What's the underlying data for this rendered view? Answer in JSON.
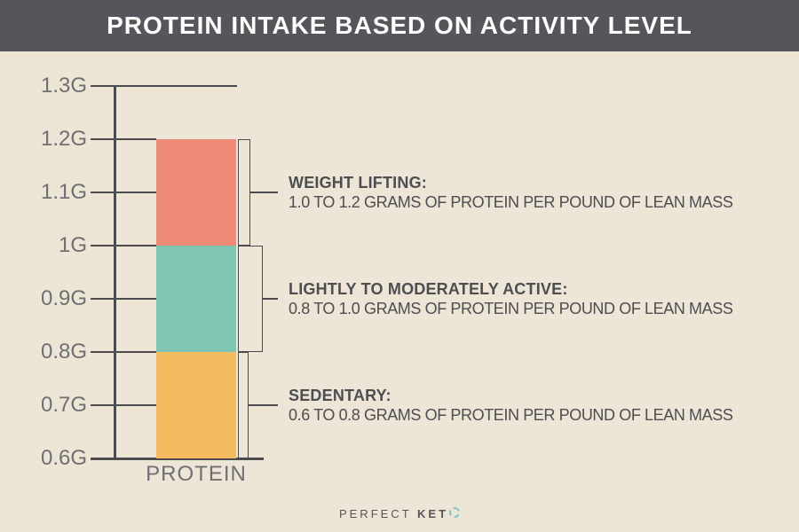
{
  "header": {
    "title": "PROTEIN INTAKE BASED ON ACTIVITY LEVEL"
  },
  "footer": {
    "brand_prefix": "PERFECT",
    "brand_bold": "KET"
  },
  "colors": {
    "background": "#EDE5D6",
    "header_bar": "#54565A",
    "line": "#4A4B4F",
    "tick_label": "#6F7073",
    "annotation_text": "#4D4E52",
    "logo_accent": "#7BC9BE"
  },
  "chart_data": {
    "type": "bar",
    "title": "PROTEIN INTAKE BASED ON ACTIVITY LEVEL",
    "categories": [
      "PROTEIN"
    ],
    "xlabel": "PROTEIN",
    "ylim": [
      0.6,
      1.3
    ],
    "grid": true,
    "yticks": [
      {
        "value": 1.3,
        "label": "1.3G"
      },
      {
        "value": 1.2,
        "label": "1.2G"
      },
      {
        "value": 1.1,
        "label": "1.1G"
      },
      {
        "value": 1.0,
        "label": "1G"
      },
      {
        "value": 0.9,
        "label": "0.9G"
      },
      {
        "value": 0.8,
        "label": "0.8G"
      },
      {
        "value": 0.7,
        "label": "0.7G"
      },
      {
        "value": 0.6,
        "label": "0.6G"
      }
    ],
    "segments": [
      {
        "name": "weight-lifting",
        "from": 1.0,
        "to": 1.2,
        "color": "#EF8A76",
        "heading": "WEIGHT LIFTING:",
        "description": "1.0 TO 1.2 GRAMS OF PROTEIN PER POUND OF LEAN MASS"
      },
      {
        "name": "lightly-to-moderately-active",
        "from": 0.8,
        "to": 1.0,
        "color": "#80C6B5",
        "heading": "LIGHTLY TO MODERATELY ACTIVE:",
        "description": "0.8 TO 1.0 GRAMS OF PROTEIN PER POUND OF LEAN MASS"
      },
      {
        "name": "sedentary",
        "from": 0.6,
        "to": 0.8,
        "color": "#F3BA60",
        "heading": "SEDENTARY:",
        "description": "0.6 TO 0.8 GRAMS OF PROTEIN PER POUND OF LEAN MASS"
      }
    ]
  }
}
